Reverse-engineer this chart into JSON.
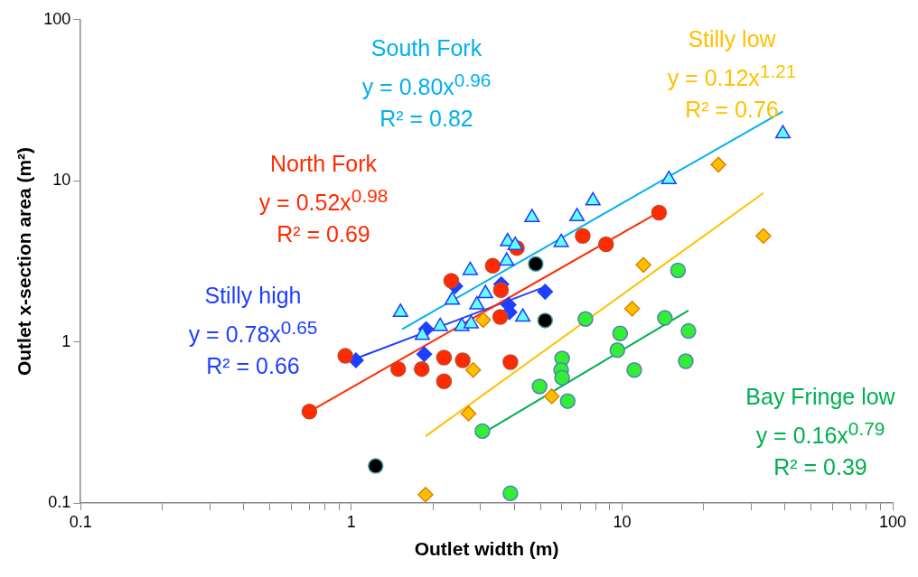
{
  "chart_data": {
    "type": "scatter",
    "xlabel": "Outlet width (m)",
    "ylabel": "Outlet x-section area (m²)",
    "log": "xy",
    "grid": false,
    "legend": false,
    "xlim": [
      0.1,
      100
    ],
    "ylim": [
      0.1,
      100
    ],
    "xticks": [
      0.1,
      {
        "value": 0.2,
        "label": null
      },
      {
        "value": 0.3,
        "label": null
      },
      {
        "value": 0.4,
        "label": null
      },
      {
        "value": 0.5,
        "label": null
      },
      {
        "value": 0.6,
        "label": null
      },
      {
        "value": 0.7,
        "label": null
      },
      {
        "value": 0.8,
        "label": null
      },
      {
        "value": 0.9,
        "label": null
      },
      1,
      {
        "value": 2,
        "label": null
      },
      {
        "value": 3,
        "label": null
      },
      {
        "value": 4,
        "label": null
      },
      {
        "value": 5,
        "label": null
      },
      {
        "value": 6,
        "label": null
      },
      {
        "value": 7,
        "label": null
      },
      {
        "value": 8,
        "label": null
      },
      {
        "value": 9,
        "label": null
      },
      10,
      {
        "value": 20,
        "label": null
      },
      {
        "value": 30,
        "label": null
      },
      {
        "value": 40,
        "label": null
      },
      {
        "value": 50,
        "label": null
      },
      {
        "value": 60,
        "label": null
      },
      {
        "value": 70,
        "label": null
      },
      {
        "value": 80,
        "label": null
      },
      {
        "value": 90,
        "label": null
      },
      100
    ],
    "yticks": [
      0.1,
      1,
      10,
      100
    ],
    "annotations": [
      "y = 0.80x$^{0.96}$",
      "R² = 0.82",
      "y = 0.12x$^{1.21}$",
      "R² = 0.76",
      "y = 0.52x$^{0.98}$",
      "R² = 0.69",
      "y = 0.78x$^{0.65}$",
      "R² = 0.66",
      "y = 0.16x$^{0.79}$",
      "R² = 0.39"
    ],
    "series": [
      {
        "color": "#66ffff",
        "marker": "triangle",
        "x": [
          1.52,
          1.83,
          2.13,
          2.56,
          2.77,
          2.91,
          3.13,
          2.36,
          2.75,
          3.78,
          4.03,
          3.75,
          4.3,
          4.65,
          6.82,
          5.96,
          7.81,
          14.9,
          39.3
        ],
        "values": [
          1.53,
          1.1,
          1.25,
          1.25,
          1.3,
          1.7,
          2.0,
          1.82,
          2.78,
          4.2,
          3.98,
          3.18,
          1.43,
          5.93,
          6.0,
          4.15,
          7.53,
          10.2,
          19.6
        ]
      },
      {
        "color": "#ffc000",
        "marker": "diamond",
        "x": [
          3.07,
          2.82,
          2.71,
          1.88,
          5.5,
          10.9,
          12.0,
          22.7,
          33.3
        ],
        "values": [
          1.37,
          0.67,
          0.36,
          0.113,
          0.46,
          1.61,
          3.01,
          12.6,
          4.55
        ]
      },
      {
        "color": "#ff2a00",
        "marker": "circle",
        "x": [
          0.7,
          0.95,
          1.49,
          1.82,
          2.2,
          2.2,
          2.58,
          2.34,
          3.33,
          3.57,
          3.55,
          3.87,
          4.09,
          7.16,
          8.73,
          13.7
        ],
        "values": [
          0.37,
          0.82,
          0.68,
          0.68,
          0.8,
          0.57,
          0.77,
          2.4,
          2.97,
          2.1,
          1.43,
          0.75,
          3.83,
          4.55,
          4.04,
          6.35
        ]
      },
      {
        "color": "#1f3fff",
        "marker": "diamond",
        "x": [
          1.04,
          1.86,
          1.89,
          2.42,
          3.58,
          3.81,
          3.84,
          5.2
        ],
        "values": [
          0.77,
          0.84,
          1.2,
          2.22,
          2.28,
          1.7,
          1.53,
          2.05
        ]
      },
      {
        "color": "#33ee33",
        "marker": "circle",
        "x": [
          3.05,
          3.87,
          4.96,
          6.01,
          5.96,
          6.01,
          6.3,
          7.33,
          9.84,
          9.61,
          11.1,
          14.4,
          17.6,
          17.2,
          16.1
        ],
        "values": [
          0.28,
          0.115,
          0.53,
          0.79,
          0.67,
          0.6,
          0.43,
          1.39,
          1.13,
          0.89,
          0.67,
          1.41,
          1.17,
          0.76,
          2.78
        ]
      },
      {
        "color": "#000000",
        "marker": "circle",
        "x": [
          1.23,
          4.8,
          5.2
        ],
        "values": [
          0.17,
          3.05,
          1.36
        ]
      },
      {
        "type": "line",
        "name": "South Fork",
        "color": "#00b0f0",
        "marker": "none",
        "x": [
          1.54,
          39.3
        ],
        "values": [
          1.2,
          27
        ]
      },
      {
        "type": "line",
        "name": "Stilly low",
        "color": "#ffc000",
        "marker": "none",
        "x": [
          1.88,
          33.3
        ],
        "values": [
          0.26,
          8.4
        ]
      },
      {
        "type": "line",
        "name": "North Fork",
        "color": "#ff2a00",
        "marker": "none",
        "x": [
          0.7,
          13.7
        ],
        "values": [
          0.37,
          6.4
        ]
      },
      {
        "type": "line",
        "name": "Stilly high",
        "color": "#1f3fff",
        "marker": "none",
        "x": [
          1.04,
          5.2
        ],
        "values": [
          0.79,
          2.2
        ]
      },
      {
        "type": "line",
        "name": "Bay Fringe low",
        "color": "#00b050",
        "marker": "none",
        "x": [
          3.05,
          17.6
        ],
        "values": [
          0.27,
          1.57
        ]
      }
    ]
  }
}
